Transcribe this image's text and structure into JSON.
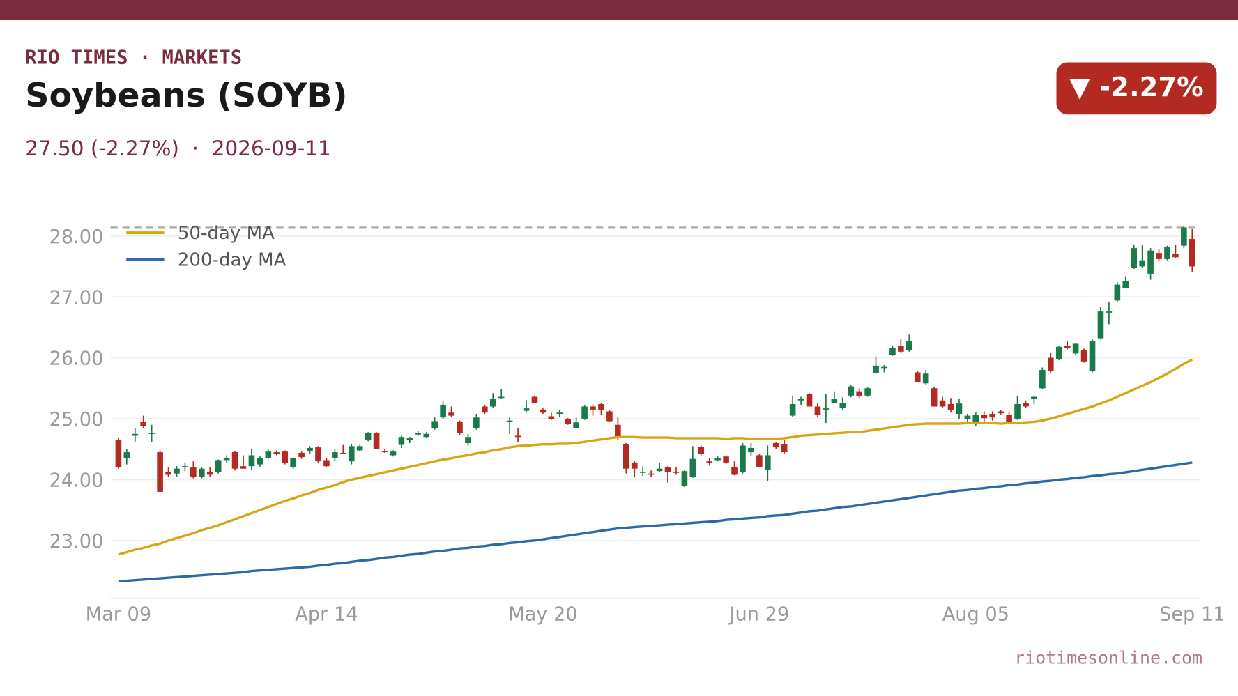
{
  "header": {
    "brand": "RIO TIMES · MARKETS",
    "title": "Soybeans (SOYB)",
    "subtitle": "27.50 (-2.27%)  ·  2026-09-11",
    "badge": "▼ -2.27%"
  },
  "footer": {
    "source": "riotimesonline.com"
  },
  "chart_data": {
    "type": "candlestick",
    "up_color": "#1a7a4a",
    "down_color": "#b22a22",
    "reference_line": 28.14,
    "grid": true,
    "legend": "upper left",
    "ylim": [
      22.05,
      28.2
    ],
    "yticks": [
      {
        "value": 23,
        "label": "23.00"
      },
      {
        "value": 24,
        "label": "24.00"
      },
      {
        "value": 25,
        "label": "25.00"
      },
      {
        "value": 26,
        "label": "26.00"
      },
      {
        "value": 27,
        "label": "27.00"
      },
      {
        "value": 28,
        "label": "28.00"
      }
    ],
    "xticks": [
      "Mar 09",
      "Apr 14",
      "May 20",
      "Jun 29",
      "Aug 05",
      "Sep 11"
    ],
    "x": [
      "Mar 09",
      "Mar 10",
      "Mar 11",
      "Mar 12",
      "Mar 13",
      "Mar 16",
      "Mar 17",
      "Mar 18",
      "Mar 19",
      "Mar 20",
      "Mar 23",
      "Mar 24",
      "Mar 25",
      "Mar 26",
      "Mar 27",
      "Mar 30",
      "Mar 31",
      "Apr 01",
      "Apr 02",
      "Apr 06",
      "Apr 07",
      "Apr 08",
      "Apr 09",
      "Apr 10",
      "Apr 13",
      "Apr 14",
      "Apr 15",
      "Apr 16",
      "Apr 17",
      "Apr 20",
      "Apr 21",
      "Apr 22",
      "Apr 23",
      "Apr 24",
      "Apr 27",
      "Apr 28",
      "Apr 29",
      "Apr 30",
      "May 01",
      "May 04",
      "May 05",
      "May 06",
      "May 07",
      "May 08",
      "May 11",
      "May 12",
      "May 13",
      "May 14",
      "May 15",
      "May 18",
      "May 19",
      "May 20",
      "May 21",
      "May 22",
      "May 26",
      "May 27",
      "May 28",
      "May 29",
      "Jun 01",
      "Jun 02",
      "Jun 03",
      "Jun 04",
      "Jun 05",
      "Jun 08",
      "Jun 09",
      "Jun 10",
      "Jun 11",
      "Jun 12",
      "Jun 15",
      "Jun 16",
      "Jun 17",
      "Jun 18",
      "Jun 22",
      "Jun 23",
      "Jun 24",
      "Jun 25",
      "Jun 26",
      "Jun 29",
      "Jun 30",
      "Jul 01",
      "Jul 02",
      "Jul 06",
      "Jul 07",
      "Jul 08",
      "Jul 09",
      "Jul 10",
      "Jul 13",
      "Jul 14",
      "Jul 15",
      "Jul 16",
      "Jul 17",
      "Jul 20",
      "Jul 21",
      "Jul 22",
      "Jul 23",
      "Jul 24",
      "Jul 27",
      "Jul 28",
      "Jul 29",
      "Jul 30",
      "Jul 31",
      "Aug 03",
      "Aug 04",
      "Aug 05",
      "Aug 06",
      "Aug 07",
      "Aug 10",
      "Aug 11",
      "Aug 12",
      "Aug 13",
      "Aug 14",
      "Aug 17",
      "Aug 18",
      "Aug 19",
      "Aug 20",
      "Aug 21",
      "Aug 24",
      "Aug 25",
      "Aug 26",
      "Aug 27",
      "Aug 28",
      "Aug 31",
      "Sep 01",
      "Sep 02",
      "Sep 03",
      "Sep 04",
      "Sep 08",
      "Sep 09",
      "Sep 10",
      "Sep 11"
    ],
    "ohlc": [
      [
        24.65,
        24.68,
        24.18,
        24.2
      ],
      [
        24.35,
        24.5,
        24.25,
        24.45
      ],
      [
        24.72,
        24.85,
        24.62,
        24.75
      ],
      [
        24.95,
        25.05,
        24.85,
        24.88
      ],
      [
        24.75,
        24.9,
        24.62,
        24.77
      ],
      [
        24.45,
        24.48,
        23.8,
        23.8
      ],
      [
        24.12,
        24.2,
        24.05,
        24.08
      ],
      [
        24.1,
        24.22,
        24.05,
        24.18
      ],
      [
        24.2,
        24.28,
        24.14,
        24.22
      ],
      [
        24.2,
        24.3,
        24.02,
        24.05
      ],
      [
        24.05,
        24.2,
        24.02,
        24.18
      ],
      [
        24.12,
        24.2,
        24.05,
        24.08
      ],
      [
        24.12,
        24.33,
        24.1,
        24.32
      ],
      [
        24.32,
        24.4,
        24.28,
        24.36
      ],
      [
        24.45,
        24.47,
        24.15,
        24.18
      ],
      [
        24.22,
        24.4,
        24.18,
        24.18
      ],
      [
        24.22,
        24.5,
        24.15,
        24.4
      ],
      [
        24.25,
        24.38,
        24.2,
        24.35
      ],
      [
        24.36,
        24.5,
        24.34,
        24.46
      ],
      [
        24.45,
        24.48,
        24.4,
        24.42
      ],
      [
        24.46,
        24.48,
        24.25,
        24.27
      ],
      [
        24.2,
        24.36,
        24.18,
        24.35
      ],
      [
        24.44,
        24.46,
        24.34,
        24.37
      ],
      [
        24.47,
        24.55,
        24.43,
        24.52
      ],
      [
        24.53,
        24.55,
        24.28,
        24.3
      ],
      [
        24.32,
        24.35,
        24.2,
        24.22
      ],
      [
        24.35,
        24.5,
        24.3,
        24.45
      ],
      [
        24.44,
        24.57,
        24.42,
        24.43
      ],
      [
        24.3,
        24.58,
        24.25,
        24.55
      ],
      [
        24.48,
        24.57,
        24.46,
        24.55
      ],
      [
        24.65,
        24.78,
        24.63,
        24.76
      ],
      [
        24.76,
        24.78,
        24.5,
        24.5
      ],
      [
        24.47,
        24.5,
        24.44,
        24.45
      ],
      [
        24.4,
        24.48,
        24.38,
        24.46
      ],
      [
        24.57,
        24.72,
        24.52,
        24.7
      ],
      [
        24.65,
        24.7,
        24.6,
        24.68
      ],
      [
        24.76,
        24.8,
        24.72,
        24.76
      ],
      [
        24.7,
        24.78,
        24.68,
        24.75
      ],
      [
        24.85,
        25.02,
        24.82,
        24.96
      ],
      [
        25.02,
        25.28,
        25.0,
        25.22
      ],
      [
        25.1,
        25.2,
        25.03,
        25.05
      ],
      [
        24.95,
        24.97,
        24.73,
        24.76
      ],
      [
        24.6,
        24.75,
        24.56,
        24.7
      ],
      [
        24.85,
        25.08,
        24.82,
        25.02
      ],
      [
        25.2,
        25.22,
        25.08,
        25.1
      ],
      [
        25.2,
        25.42,
        25.18,
        25.32
      ],
      [
        25.34,
        25.48,
        25.32,
        25.36
      ],
      [
        24.95,
        25.02,
        24.75,
        24.97
      ],
      [
        24.72,
        24.85,
        24.62,
        24.7
      ],
      [
        25.13,
        25.3,
        25.1,
        25.17
      ],
      [
        25.36,
        25.38,
        25.25,
        25.26
      ],
      [
        25.15,
        25.17,
        25.08,
        25.1
      ],
      [
        25.04,
        25.1,
        24.98,
        25.0
      ],
      [
        25.08,
        25.15,
        25.03,
        25.1
      ],
      [
        24.99,
        25.01,
        24.9,
        24.92
      ],
      [
        24.85,
        25.02,
        24.84,
        24.94
      ],
      [
        25.0,
        25.22,
        24.98,
        25.2
      ],
      [
        25.2,
        25.23,
        25.05,
        25.15
      ],
      [
        25.24,
        25.26,
        25.06,
        25.14
      ],
      [
        25.12,
        25.14,
        24.94,
        24.96
      ],
      [
        24.9,
        25.02,
        24.65,
        24.7
      ],
      [
        24.58,
        24.6,
        24.1,
        24.18
      ],
      [
        24.28,
        24.3,
        24.05,
        24.18
      ],
      [
        24.12,
        24.22,
        24.06,
        24.13
      ],
      [
        24.1,
        24.15,
        24.04,
        24.09
      ],
      [
        24.14,
        24.28,
        24.12,
        24.18
      ],
      [
        24.2,
        24.22,
        23.95,
        24.12
      ],
      [
        24.13,
        24.2,
        24.08,
        24.12
      ],
      [
        23.9,
        24.15,
        23.88,
        24.14
      ],
      [
        24.05,
        24.55,
        24.03,
        24.34
      ],
      [
        24.54,
        24.56,
        24.4,
        24.42
      ],
      [
        24.3,
        24.35,
        24.23,
        24.28
      ],
      [
        24.32,
        24.38,
        24.3,
        24.35
      ],
      [
        24.38,
        24.4,
        24.26,
        24.28
      ],
      [
        24.2,
        24.3,
        24.07,
        24.08
      ],
      [
        24.12,
        24.6,
        24.1,
        24.56
      ],
      [
        24.45,
        24.6,
        24.38,
        24.52
      ],
      [
        24.4,
        24.42,
        24.2,
        24.2
      ],
      [
        24.16,
        24.56,
        23.98,
        24.4
      ],
      [
        24.6,
        24.62,
        24.5,
        24.53
      ],
      [
        24.58,
        24.65,
        24.43,
        24.45
      ],
      [
        25.05,
        25.38,
        25.03,
        25.24
      ],
      [
        25.3,
        25.36,
        25.22,
        25.32
      ],
      [
        25.4,
        25.42,
        25.2,
        25.2
      ],
      [
        25.2,
        25.25,
        25.03,
        25.06
      ],
      [
        25.15,
        25.4,
        24.93,
        25.17
      ],
      [
        25.26,
        25.45,
        25.25,
        25.32
      ],
      [
        25.18,
        25.35,
        25.15,
        25.26
      ],
      [
        25.38,
        25.55,
        25.35,
        25.53
      ],
      [
        25.45,
        25.5,
        25.34,
        25.37
      ],
      [
        25.38,
        25.52,
        25.36,
        25.5
      ],
      [
        25.75,
        26.02,
        25.74,
        25.87
      ],
      [
        25.84,
        25.88,
        25.76,
        25.85
      ],
      [
        26.05,
        26.2,
        26.03,
        26.16
      ],
      [
        26.2,
        26.3,
        26.08,
        26.1
      ],
      [
        26.12,
        26.38,
        26.1,
        26.28
      ],
      [
        25.76,
        25.78,
        25.6,
        25.6
      ],
      [
        25.58,
        25.8,
        25.56,
        25.74
      ],
      [
        25.5,
        25.52,
        25.2,
        25.2
      ],
      [
        25.3,
        25.36,
        25.18,
        25.2
      ],
      [
        25.24,
        25.34,
        25.1,
        25.14
      ],
      [
        25.08,
        25.32,
        25.0,
        25.25
      ],
      [
        25.0,
        25.08,
        24.94,
        25.05
      ],
      [
        24.95,
        25.1,
        24.88,
        25.06
      ],
      [
        25.06,
        25.12,
        24.94,
        25.01
      ],
      [
        25.08,
        25.12,
        24.97,
        25.02
      ],
      [
        25.12,
        25.14,
        25.07,
        25.09
      ],
      [
        25.06,
        25.1,
        24.92,
        24.94
      ],
      [
        25.0,
        25.38,
        24.98,
        25.24
      ],
      [
        25.26,
        25.3,
        25.18,
        25.2
      ],
      [
        25.33,
        25.38,
        25.24,
        25.36
      ],
      [
        25.5,
        25.84,
        25.48,
        25.8
      ],
      [
        26.0,
        26.08,
        25.76,
        25.78
      ],
      [
        25.98,
        26.2,
        25.96,
        26.18
      ],
      [
        26.2,
        26.28,
        26.14,
        26.16
      ],
      [
        26.07,
        26.24,
        26.04,
        26.23
      ],
      [
        26.12,
        26.15,
        25.92,
        25.94
      ],
      [
        25.78,
        26.3,
        25.76,
        26.28
      ],
      [
        26.32,
        26.84,
        26.3,
        26.76
      ],
      [
        26.74,
        26.92,
        26.55,
        26.76
      ],
      [
        26.94,
        27.24,
        26.92,
        27.2
      ],
      [
        27.15,
        27.34,
        27.14,
        27.26
      ],
      [
        27.48,
        27.86,
        27.46,
        27.8
      ],
      [
        27.5,
        27.86,
        27.48,
        27.6
      ],
      [
        27.38,
        27.8,
        27.28,
        27.76
      ],
      [
        27.72,
        27.78,
        27.58,
        27.62
      ],
      [
        27.62,
        27.84,
        27.6,
        27.82
      ],
      [
        27.7,
        27.86,
        27.64,
        27.65
      ],
      [
        27.84,
        28.16,
        27.8,
        28.14
      ],
      [
        27.95,
        28.12,
        27.4,
        27.5
      ]
    ],
    "series": [
      {
        "name": "50-day MA",
        "color": "#d9a514",
        "values": [
          22.77,
          22.81,
          22.85,
          22.88,
          22.92,
          22.95,
          23.0,
          23.04,
          23.08,
          23.12,
          23.17,
          23.21,
          23.25,
          23.3,
          23.35,
          23.4,
          23.45,
          23.5,
          23.55,
          23.6,
          23.65,
          23.69,
          23.74,
          23.78,
          23.83,
          23.87,
          23.91,
          23.96,
          24.0,
          24.03,
          24.06,
          24.09,
          24.12,
          24.15,
          24.18,
          24.21,
          24.24,
          24.27,
          24.3,
          24.33,
          24.35,
          24.38,
          24.4,
          24.43,
          24.45,
          24.48,
          24.5,
          24.53,
          24.55,
          24.56,
          24.57,
          24.58,
          24.58,
          24.59,
          24.59,
          24.6,
          24.62,
          24.64,
          24.66,
          24.68,
          24.7,
          24.7,
          24.7,
          24.69,
          24.69,
          24.69,
          24.69,
          24.68,
          24.68,
          24.68,
          24.68,
          24.68,
          24.68,
          24.67,
          24.68,
          24.68,
          24.67,
          24.67,
          24.67,
          24.67,
          24.68,
          24.7,
          24.72,
          24.73,
          24.74,
          24.75,
          24.76,
          24.77,
          24.78,
          24.78,
          24.8,
          24.82,
          24.84,
          24.86,
          24.88,
          24.9,
          24.91,
          24.92,
          24.92,
          24.92,
          24.92,
          24.92,
          24.93,
          24.93,
          24.93,
          24.93,
          24.92,
          24.93,
          24.93,
          24.94,
          24.95,
          24.97,
          25.0,
          25.04,
          25.08,
          25.12,
          25.16,
          25.2,
          25.25,
          25.3,
          25.36,
          25.42,
          25.48,
          25.54,
          25.6,
          25.67,
          25.74,
          25.82,
          25.9,
          25.97
        ]
      },
      {
        "name": "200-day MA",
        "color": "#2b6aa6",
        "values": [
          22.33,
          22.34,
          22.35,
          22.36,
          22.37,
          22.38,
          22.39,
          22.4,
          22.41,
          22.42,
          22.43,
          22.44,
          22.45,
          22.46,
          22.47,
          22.48,
          22.5,
          22.51,
          22.52,
          22.53,
          22.54,
          22.55,
          22.56,
          22.57,
          22.59,
          22.6,
          22.62,
          22.63,
          22.65,
          22.67,
          22.68,
          22.7,
          22.72,
          22.73,
          22.75,
          22.77,
          22.78,
          22.8,
          22.82,
          22.83,
          22.85,
          22.87,
          22.88,
          22.9,
          22.91,
          22.93,
          22.94,
          22.96,
          22.97,
          22.99,
          23.0,
          23.02,
          23.04,
          23.06,
          23.08,
          23.1,
          23.12,
          23.14,
          23.16,
          23.18,
          23.2,
          23.21,
          23.22,
          23.23,
          23.24,
          23.25,
          23.26,
          23.27,
          23.28,
          23.29,
          23.3,
          23.31,
          23.32,
          23.34,
          23.35,
          23.36,
          23.37,
          23.38,
          23.4,
          23.41,
          23.42,
          23.44,
          23.46,
          23.48,
          23.49,
          23.51,
          23.53,
          23.55,
          23.56,
          23.58,
          23.6,
          23.62,
          23.64,
          23.66,
          23.68,
          23.7,
          23.72,
          23.74,
          23.76,
          23.78,
          23.8,
          23.82,
          23.83,
          23.85,
          23.86,
          23.88,
          23.89,
          23.91,
          23.92,
          23.94,
          23.95,
          23.97,
          23.98,
          24.0,
          24.01,
          24.03,
          24.04,
          24.06,
          24.07,
          24.09,
          24.1,
          24.12,
          24.14,
          24.16,
          24.18,
          24.2,
          24.22,
          24.24,
          24.26,
          24.28
        ]
      }
    ]
  }
}
